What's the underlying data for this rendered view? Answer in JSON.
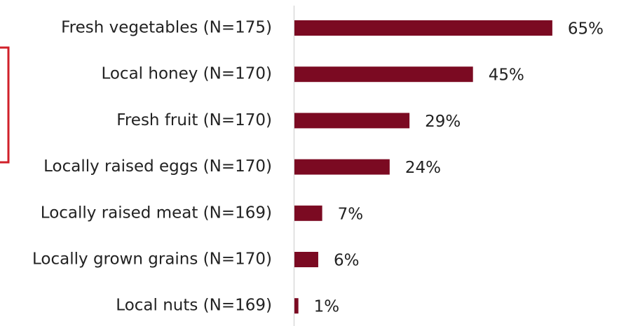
{
  "chart_data": {
    "type": "bar",
    "orientation": "horizontal",
    "categories": [
      "Fresh vegetables (N=175)",
      "Local honey (N=170)",
      "Fresh fruit (N=170)",
      "Locally raised eggs (N=170)",
      "Locally raised meat (N=169)",
      "Locally grown grains (N=170)",
      "Local nuts (N=169)"
    ],
    "values": [
      65,
      45,
      29,
      24,
      7,
      6,
      1
    ],
    "value_labels": [
      "65%",
      "45%",
      "29%",
      "24%",
      "7%",
      "6%",
      "1%"
    ],
    "color": "#7b0a22"
  }
}
